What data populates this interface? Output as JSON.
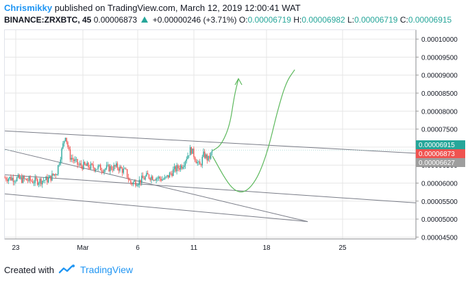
{
  "header": {
    "author": "Chrismikky",
    "published": "published on TradingView.com, March 12, 2019 12:00:41 WAT",
    "symbol": "BINANCE:ZRXBTC, 45",
    "last": "0.00006873",
    "change": "+0.00000246 (+3.71%)",
    "o_label": "O:",
    "o_value": "0.00006719",
    "h_label": "H:",
    "h_value": "0.00006982",
    "l_label": "L:",
    "l_value": "0.00006719",
    "c_label": "C:",
    "c_value": "0.00006915"
  },
  "footer": {
    "created_with": "Created with",
    "brand": "TradingView",
    "logo_icon": "tradingview-logo-icon"
  },
  "colors": {
    "up": "#26a69a",
    "down": "#ef5350",
    "drawing": "#5cb85c",
    "trendline": "#787b86",
    "grid": "#e6e6e6"
  },
  "price_tags": [
    {
      "value": "0.00006915",
      "color": "#26a69a"
    },
    {
      "value": "0.00006873",
      "color": "#ef5350"
    },
    {
      "value": "0.00006627",
      "color": "#9e9e9e"
    }
  ],
  "chart_data": {
    "type": "candlestick",
    "symbol": "BINANCE:ZRXBTC",
    "interval": "45",
    "y_ticks": [
      "0.00010000",
      "0.00009500",
      "0.00009000",
      "0.00008500",
      "0.00008000",
      "0.00007500",
      "0.00007000",
      "0.00006500",
      "0.00006000",
      "0.00005500",
      "0.00005000",
      "0.00004500"
    ],
    "x_ticks": [
      "23",
      "Mar",
      "6",
      "11",
      "18",
      "25"
    ],
    "ylim": [
      4.45e-05,
      0.0001025
    ],
    "price_path": [
      [
        0,
        6.15e-05
      ],
      [
        3,
        6.12e-05
      ],
      [
        7,
        6.05e-05
      ],
      [
        10,
        6.1e-05
      ],
      [
        12,
        6.3e-05
      ],
      [
        14,
        7.35e-05
      ],
      [
        15,
        6.75e-05
      ],
      [
        17,
        6.5e-05
      ],
      [
        20,
        6.45e-05
      ],
      [
        23,
        6.4e-05
      ],
      [
        26,
        6.45e-05
      ],
      [
        28,
        6.3e-05
      ],
      [
        29,
        6e-05
      ],
      [
        31,
        6.05e-05
      ],
      [
        33,
        6.2e-05
      ],
      [
        35,
        6.15e-05
      ],
      [
        37,
        6.1e-05
      ],
      [
        39,
        6.35e-05
      ],
      [
        41,
        6.5e-05
      ],
      [
        43,
        6.95e-05
      ],
      [
        44,
        6.7e-05
      ],
      [
        45,
        6.45e-05
      ],
      [
        46,
        6.8e-05
      ],
      [
        47,
        6.65e-05
      ],
      [
        48,
        6.873e-05
      ]
    ],
    "trendlines": [
      {
        "from": [
          0,
          7.45e-05
        ],
        "to": [
          95,
          6.83e-05
        ]
      },
      {
        "from": [
          0,
          6.23e-05
        ],
        "to": [
          95,
          5.45e-05
        ]
      },
      {
        "from": [
          0,
          5.7e-05
        ],
        "to": [
          70,
          4.93e-05
        ]
      },
      {
        "from": [
          0,
          6.94e-05
        ],
        "to": [
          70,
          4.93e-05
        ]
      }
    ],
    "projection": [
      [
        48,
        6.9e-05
      ],
      [
        50,
        7.05e-05
      ],
      [
        52,
        7.6e-05
      ],
      [
        53,
        8.4e-05
      ],
      [
        54,
        8.9e-05
      ]
    ],
    "projection2": [
      [
        48,
        6.75e-05
      ],
      [
        51,
        6.1e-05
      ],
      [
        53,
        5.8e-05
      ],
      [
        55,
        5.73e-05
      ],
      [
        57,
        5.9e-05
      ],
      [
        59,
        6.3e-05
      ],
      [
        61,
        7e-05
      ],
      [
        63,
        8e-05
      ],
      [
        65,
        8.8e-05
      ],
      [
        67,
        9.15e-05
      ]
    ]
  }
}
